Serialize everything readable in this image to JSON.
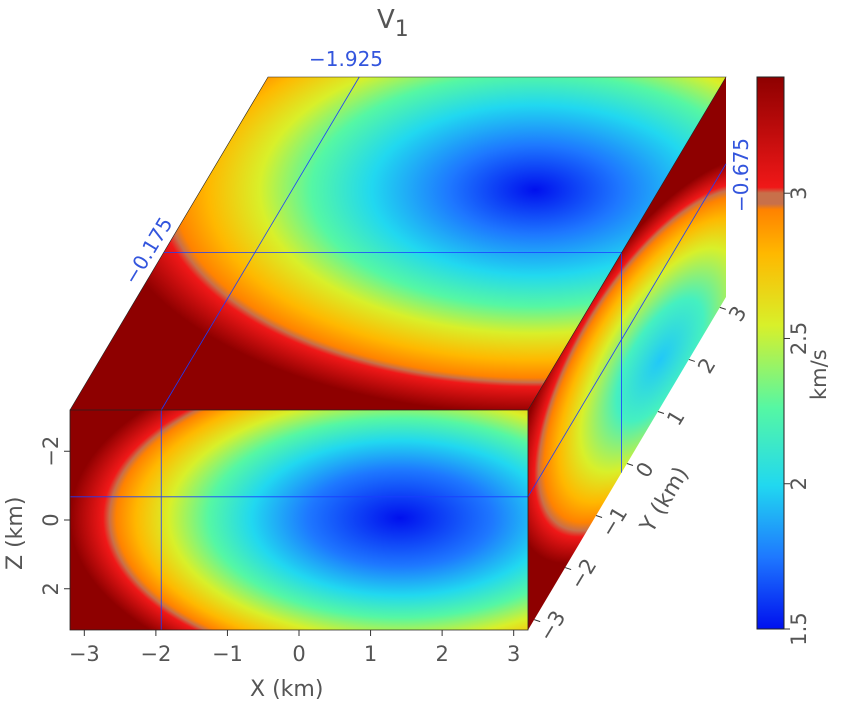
{
  "chart_data": {
    "type": "heatmap",
    "title": "V",
    "title_subscript": "1",
    "colormap": "jet",
    "x_axis": {
      "label": "X (km)",
      "range": [
        -3.2,
        3.2
      ],
      "ticks": [
        -3,
        -2,
        -1,
        0,
        1,
        2,
        3
      ],
      "tick_labels": [
        "−3",
        "−2",
        "−1",
        "0",
        "1",
        "2",
        "3"
      ]
    },
    "y_axis": {
      "label": "Y (km)",
      "range": [
        -3.2,
        3.2
      ],
      "ticks": [
        -3,
        -2,
        -1,
        0,
        1,
        2,
        3
      ],
      "tick_labels": [
        "−3",
        "−2",
        "−1",
        "0",
        "1",
        "2",
        "3"
      ]
    },
    "z_axis": {
      "label": "Z (km)",
      "range": [
        -3.2,
        3.2
      ],
      "ticks": [
        -2,
        0,
        2
      ],
      "tick_labels": [
        "−2",
        "0",
        "2"
      ],
      "inverted": true
    },
    "slices": {
      "x": -1.925,
      "y": -0.175,
      "z": -0.675,
      "labels": {
        "x": "−1.925",
        "y": "−0.175",
        "z": "−0.675"
      }
    },
    "field": {
      "description_values_in_km_per_s": true,
      "min_velocity_center": {
        "x": 1.5,
        "y": 0.0,
        "z": 0.0
      },
      "min_value": 1.5,
      "max_value": 3.4
    },
    "colorbar": {
      "label": "km/s",
      "range": [
        1.5,
        3.4
      ],
      "ticks": [
        1.5,
        2,
        2.5,
        3
      ],
      "tick_labels": [
        "1.5",
        "2",
        "2.5",
        "3"
      ]
    }
  }
}
